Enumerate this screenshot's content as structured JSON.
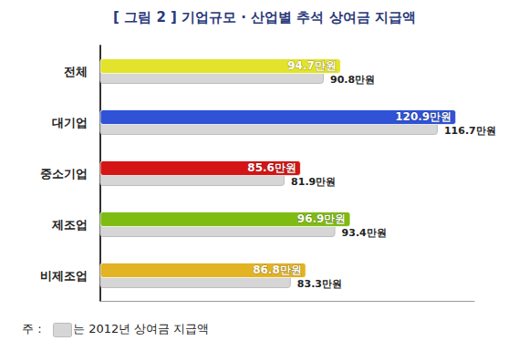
{
  "chart_data": {
    "type": "bar",
    "title": "[ 그림 2 ] 기업규모 · 산업별 추석 상여금 지급액",
    "orientation": "horizontal",
    "categories": [
      "전체",
      "대기업",
      "중소기업",
      "제조업",
      "비제조업"
    ],
    "series": [
      {
        "values": [
          94.7,
          120.9,
          85.6,
          96.9,
          86.8
        ],
        "value_labels": [
          "94.7만원",
          "120.9만원",
          "85.6만원",
          "96.9만원",
          "86.8만원"
        ],
        "colors": [
          "#e3e32b",
          "#2f52d6",
          "#d41515",
          "#7fbc12",
          "#e2b323"
        ]
      },
      {
        "values": [
          90.8,
          116.7,
          81.9,
          93.4,
          83.3
        ],
        "value_labels": [
          "90.8만원",
          "116.7만원",
          "81.9만원",
          "93.4만원",
          "83.3만원"
        ],
        "color": "#d6d6d6"
      }
    ],
    "xlim": [
      40,
      125
    ],
    "grid": false,
    "data_labels": true,
    "tick_labels": "y",
    "annotations": [
      "주 :",
      "는 2012년 상여금 지급액"
    ]
  }
}
